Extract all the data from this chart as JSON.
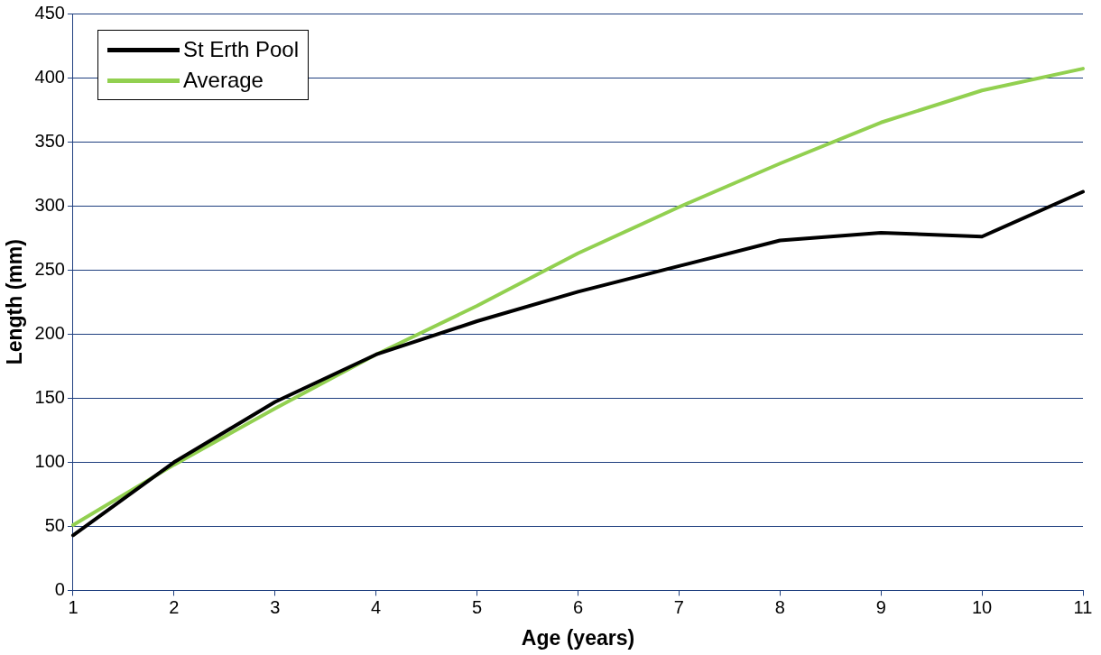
{
  "chart_data": {
    "type": "line",
    "xlabel": "Age (years)",
    "ylabel": "Length (mm)",
    "x": [
      1,
      2,
      3,
      4,
      5,
      6,
      7,
      8,
      9,
      10,
      11
    ],
    "series": [
      {
        "name": "St Erth Pool",
        "color": "#000000",
        "values": [
          43,
          100,
          147,
          184,
          210,
          233,
          253,
          273,
          279,
          276,
          311
        ]
      },
      {
        "name": "Average",
        "color": "#92d050",
        "values": [
          51,
          98,
          142,
          184,
          222,
          263,
          299,
          333,
          365,
          390,
          407
        ]
      }
    ],
    "xlim": [
      1,
      11
    ],
    "xticks": [
      1,
      2,
      3,
      4,
      5,
      6,
      7,
      8,
      9,
      10,
      11
    ],
    "ylim": [
      0,
      450
    ],
    "yticks": [
      0,
      50,
      100,
      150,
      200,
      250,
      300,
      350,
      400,
      450
    ],
    "grid": "y",
    "legend": "top left",
    "marker": "none",
    "line_style": "solid"
  }
}
